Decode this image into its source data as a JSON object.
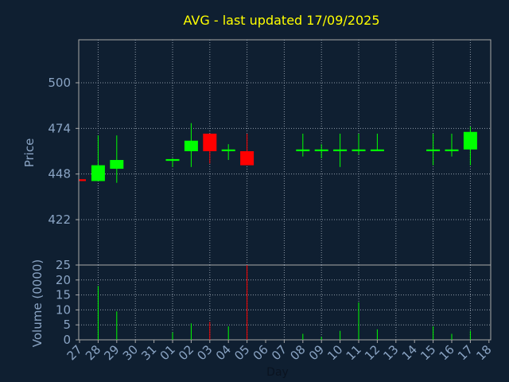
{
  "chart_data": {
    "title": "AVG - last updated 17/09/2025",
    "type": "candlestick",
    "xlabel": "Day",
    "colors": {
      "background": "#0f1f31",
      "plot_border": "#a8a8a8",
      "grid": "#8e99a6",
      "title": "#ffff00",
      "axis_text": "#8aa4c4",
      "up": "#00ff00",
      "down": "#ff0000"
    },
    "x_tick_labels": [
      "27",
      "28",
      "29",
      "30",
      "31",
      "01",
      "02",
      "03",
      "04",
      "05",
      "06",
      "07",
      "08",
      "09",
      "10",
      "11",
      "12",
      "13",
      "14",
      "15",
      "16",
      "17",
      "18"
    ],
    "price_panel": {
      "ylabel": "Price",
      "ylim": [
        422,
        522
      ],
      "yticks": [
        422,
        448,
        474,
        500
      ],
      "grid": true
    },
    "volume_panel": {
      "ylabel": "Volume (0000)",
      "ylim": [
        0,
        25
      ],
      "yticks": [
        0,
        5,
        10,
        15,
        20,
        25
      ],
      "grid": true
    },
    "candles": [
      {
        "day": "27",
        "open": 445,
        "high": 445,
        "low": 444,
        "close": 444,
        "volume": 0
      },
      {
        "day": "28",
        "open": 444,
        "high": 470,
        "low": 444,
        "close": 453,
        "volume": 18
      },
      {
        "day": "29",
        "open": 451,
        "high": 470,
        "low": 443,
        "close": 456,
        "volume": 9.5
      },
      {
        "day": "01",
        "open": 455.5,
        "high": 457,
        "low": 452,
        "close": 456.5,
        "volume": 2.5
      },
      {
        "day": "02",
        "open": 461,
        "high": 477,
        "low": 452,
        "close": 467,
        "volume": 5.5
      },
      {
        "day": "03",
        "open": 471,
        "high": 471,
        "low": 454,
        "close": 461,
        "volume": 6
      },
      {
        "day": "04",
        "open": 461,
        "high": 465,
        "low": 456,
        "close": 462,
        "volume": 4.5
      },
      {
        "day": "05",
        "open": 461,
        "high": 471,
        "low": 453,
        "close": 453,
        "volume": 25
      },
      {
        "day": "08",
        "open": 461,
        "high": 471,
        "low": 458,
        "close": 462,
        "volume": 2
      },
      {
        "day": "09",
        "open": 461,
        "high": 465,
        "low": 457,
        "close": 462,
        "volume": 1
      },
      {
        "day": "10",
        "open": 461,
        "high": 471,
        "low": 452,
        "close": 462,
        "volume": 3
      },
      {
        "day": "11",
        "open": 461,
        "high": 471,
        "low": 459,
        "close": 462,
        "volume": 12.5
      },
      {
        "day": "12",
        "open": 461,
        "high": 471,
        "low": 461,
        "close": 462,
        "volume": 3.5
      },
      {
        "day": "15",
        "open": 461,
        "high": 471,
        "low": 453,
        "close": 462,
        "volume": 4.5
      },
      {
        "day": "16",
        "open": 461,
        "high": 471,
        "low": 458,
        "close": 462,
        "volume": 2
      },
      {
        "day": "17",
        "open": 462,
        "high": 475,
        "low": 453,
        "close": 472,
        "volume": 3
      }
    ]
  }
}
